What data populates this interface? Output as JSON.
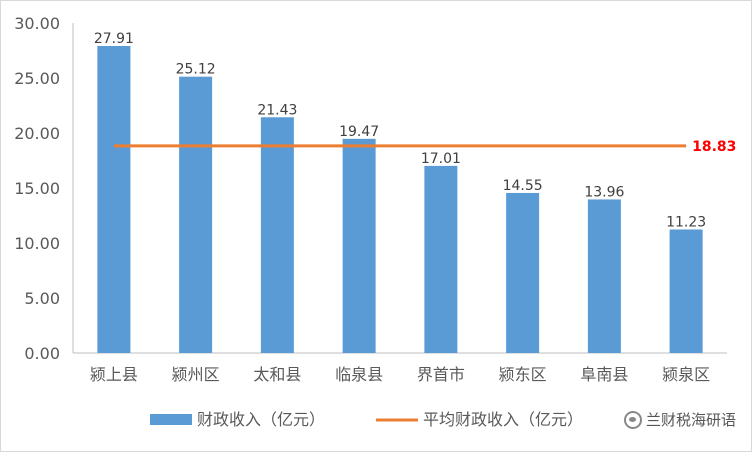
{
  "chart_data": {
    "type": "bar",
    "categories": [
      "颍上县",
      "颍州区",
      "太和县",
      "临泉县",
      "界首市",
      "颍东区",
      "阜南县",
      "颍泉区"
    ],
    "series": [
      {
        "name": "财政收入（亿元）",
        "values": [
          27.91,
          25.12,
          21.43,
          19.47,
          17.01,
          14.55,
          13.96,
          11.23
        ],
        "color": "#5b9bd5"
      }
    ],
    "average_line": {
      "name": "平均财政收入（亿元）",
      "value": 18.83,
      "label": "18.83",
      "color": "#ed7d31",
      "label_color": "#ff0000"
    },
    "y_ticks": [
      "0.00",
      "5.00",
      "10.00",
      "15.00",
      "20.00",
      "25.00",
      "30.00"
    ],
    "ylim": [
      0,
      30
    ],
    "grid": false,
    "legend_position": "bottom"
  },
  "watermark": {
    "text": "兰财税海研语",
    "icon": "wechat-icon"
  }
}
